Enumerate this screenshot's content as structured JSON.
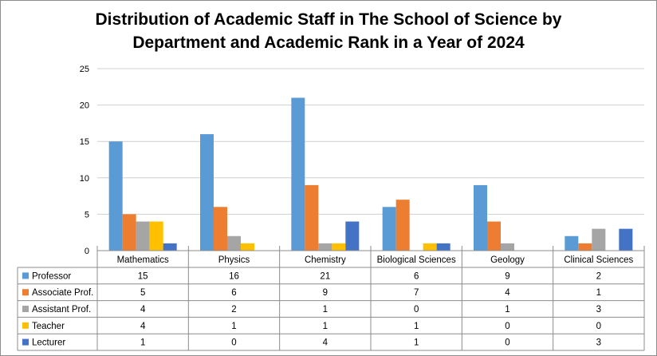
{
  "chart_data": {
    "type": "bar",
    "title_lines": [
      "Distribution of Academic Staff in The School of Science by",
      "Department and Academic Rank in a Year of 2024"
    ],
    "categories": [
      "Mathematics",
      "Physics",
      "Chemistry",
      "Biological Sciences",
      "Geology",
      "Clinical Sciences"
    ],
    "series": [
      {
        "name": "Professor",
        "color": "#5B9BD5",
        "values": [
          15,
          16,
          21,
          6,
          9,
          2
        ]
      },
      {
        "name": "Associate Prof.",
        "color": "#ED7D31",
        "values": [
          5,
          6,
          9,
          7,
          4,
          1
        ]
      },
      {
        "name": "Assistant Prof.",
        "color": "#A5A5A5",
        "values": [
          4,
          2,
          1,
          0,
          1,
          3
        ]
      },
      {
        "name": "Teacher",
        "color": "#FFC000",
        "values": [
          4,
          1,
          1,
          1,
          0,
          0
        ]
      },
      {
        "name": "Lecturer",
        "color": "#4472C4",
        "values": [
          1,
          0,
          4,
          1,
          0,
          3
        ]
      }
    ],
    "ylim": [
      0,
      25
    ],
    "yticks": [
      0,
      5,
      10,
      15,
      20,
      25
    ],
    "grid": true,
    "legend": "data-table"
  }
}
